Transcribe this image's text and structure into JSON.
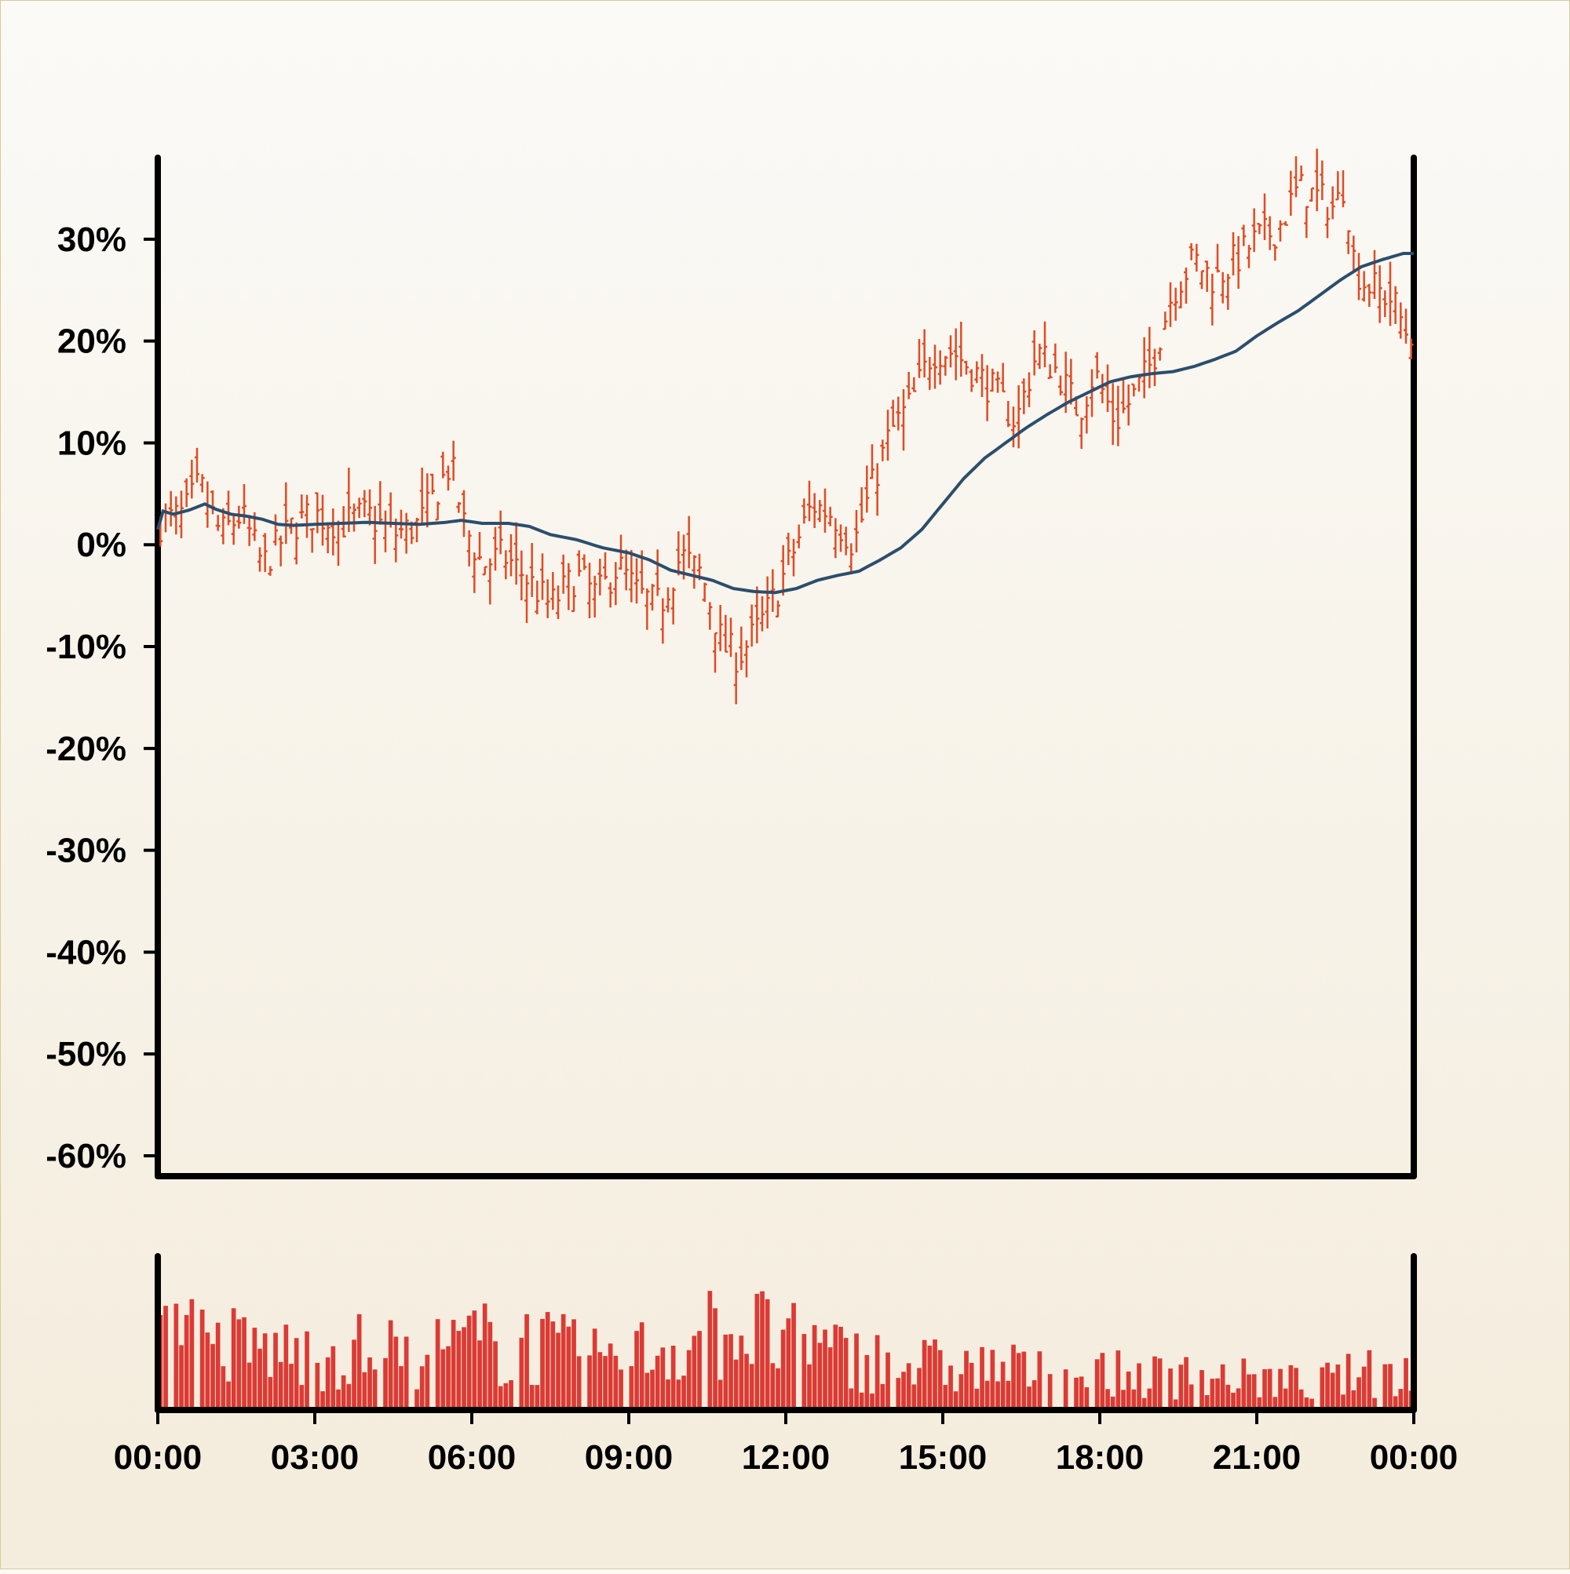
{
  "chart_data": [
    {
      "type": "ohlc",
      "title": "",
      "xlabel": "",
      "ylabel": "",
      "ylim": [
        -62,
        38
      ],
      "y_ticks": [
        30,
        20,
        10,
        0,
        -10,
        -20,
        -30,
        -40,
        -50,
        -60
      ],
      "y_tick_labels": [
        "30%",
        "20%",
        "10%",
        "0%",
        "-10%",
        "-20%",
        "-30%",
        "-40%",
        "-50%",
        "-60%"
      ],
      "x_range_hours": [
        0,
        24
      ],
      "price_color": "#e34a22",
      "ma_color": "#2c4e6c",
      "price_path": [
        [
          0.0,
          2
        ],
        [
          0.5,
          3
        ],
        [
          0.8,
          6
        ],
        [
          1.2,
          1
        ],
        [
          1.6,
          3
        ],
        [
          2.0,
          -2
        ],
        [
          2.3,
          0
        ],
        [
          2.6,
          2
        ],
        [
          3.0,
          3
        ],
        [
          3.5,
          2
        ],
        [
          4.0,
          3
        ],
        [
          4.5,
          1
        ],
        [
          5.0,
          2
        ],
        [
          5.3,
          5
        ],
        [
          5.6,
          8
        ],
        [
          5.85,
          2
        ],
        [
          6.2,
          -2
        ],
        [
          6.6,
          -1
        ],
        [
          7.0,
          -3
        ],
        [
          7.5,
          -6
        ],
        [
          8.0,
          -3
        ],
        [
          8.4,
          -5
        ],
        [
          8.8,
          -2
        ],
        [
          9.2,
          -5
        ],
        [
          9.6,
          -6
        ],
        [
          10.0,
          -1
        ],
        [
          10.4,
          -3
        ],
        [
          10.8,
          -10
        ],
        [
          11.1,
          -11
        ],
        [
          11.5,
          -8
        ],
        [
          11.8,
          -5
        ],
        [
          12.2,
          0
        ],
        [
          12.5,
          4
        ],
        [
          12.9,
          3
        ],
        [
          13.3,
          0
        ],
        [
          13.6,
          5
        ],
        [
          14.0,
          11
        ],
        [
          14.4,
          14
        ],
        [
          14.8,
          19
        ],
        [
          15.2,
          19
        ],
        [
          15.6,
          17
        ],
        [
          16.0,
          15
        ],
        [
          16.4,
          12
        ],
        [
          16.8,
          19
        ],
        [
          17.2,
          17
        ],
        [
          17.6,
          13
        ],
        [
          17.9,
          17
        ],
        [
          18.3,
          12
        ],
        [
          18.7,
          15
        ],
        [
          19.0,
          18
        ],
        [
          19.4,
          25
        ],
        [
          19.8,
          28
        ],
        [
          20.2,
          26
        ],
        [
          20.6,
          28
        ],
        [
          21.0,
          30
        ],
        [
          21.4,
          31
        ],
        [
          21.8,
          35
        ],
        [
          22.2,
          34
        ],
        [
          22.5,
          33
        ],
        [
          22.7,
          36
        ],
        [
          22.8,
          29
        ],
        [
          23.0,
          26
        ],
        [
          23.3,
          25
        ],
        [
          23.6,
          24
        ],
        [
          23.85,
          21
        ]
      ],
      "moving_average": [
        [
          0.0,
          1.5
        ],
        [
          0.1,
          3.3
        ],
        [
          0.3,
          3.0
        ],
        [
          0.6,
          3.4
        ],
        [
          0.9,
          4.0
        ],
        [
          1.1,
          3.5
        ],
        [
          1.4,
          3.0
        ],
        [
          1.7,
          2.8
        ],
        [
          2.0,
          2.5
        ],
        [
          2.3,
          2.0
        ],
        [
          2.6,
          1.9
        ],
        [
          3.0,
          2.0
        ],
        [
          3.5,
          2.1
        ],
        [
          4.0,
          2.2
        ],
        [
          4.5,
          2.1
        ],
        [
          5.0,
          2.0
        ],
        [
          5.5,
          2.2
        ],
        [
          5.8,
          2.4
        ],
        [
          6.2,
          2.1
        ],
        [
          6.7,
          2.1
        ],
        [
          7.1,
          1.8
        ],
        [
          7.5,
          1.0
        ],
        [
          8.0,
          0.5
        ],
        [
          8.5,
          -0.3
        ],
        [
          9.0,
          -0.8
        ],
        [
          9.4,
          -1.5
        ],
        [
          9.8,
          -2.5
        ],
        [
          10.2,
          -3.0
        ],
        [
          10.6,
          -3.5
        ],
        [
          11.0,
          -4.3
        ],
        [
          11.4,
          -4.6
        ],
        [
          11.8,
          -4.7
        ],
        [
          12.2,
          -4.3
        ],
        [
          12.6,
          -3.5
        ],
        [
          13.0,
          -3.0
        ],
        [
          13.4,
          -2.6
        ],
        [
          13.8,
          -1.5
        ],
        [
          14.2,
          -0.3
        ],
        [
          14.6,
          1.5
        ],
        [
          15.0,
          4.0
        ],
        [
          15.4,
          6.5
        ],
        [
          15.8,
          8.5
        ],
        [
          16.2,
          10.0
        ],
        [
          16.6,
          11.5
        ],
        [
          17.0,
          12.8
        ],
        [
          17.4,
          14.0
        ],
        [
          17.8,
          15.0
        ],
        [
          18.2,
          16.0
        ],
        [
          18.6,
          16.5
        ],
        [
          19.0,
          16.8
        ],
        [
          19.4,
          17.0
        ],
        [
          19.8,
          17.5
        ],
        [
          20.2,
          18.2
        ],
        [
          20.6,
          19.0
        ],
        [
          21.0,
          20.5
        ],
        [
          21.4,
          21.8
        ],
        [
          21.8,
          23.0
        ],
        [
          22.2,
          24.5
        ],
        [
          22.6,
          26.0
        ],
        [
          23.0,
          27.3
        ],
        [
          23.4,
          28.0
        ],
        [
          23.8,
          28.6
        ],
        [
          24.0,
          28.6
        ]
      ]
    },
    {
      "type": "bar",
      "title": "",
      "series": "volume",
      "color": "#dc3a34",
      "x_ticks": [
        0,
        3,
        6,
        9,
        12,
        15,
        18,
        21,
        24
      ],
      "x_tick_labels": [
        "00:00",
        "03:00",
        "06:00",
        "09:00",
        "12:00",
        "15:00",
        "18:00",
        "21:00",
        "00:00"
      ],
      "relative_volume_profile": [
        [
          0,
          0.6
        ],
        [
          1,
          0.55
        ],
        [
          2,
          0.5
        ],
        [
          3,
          0.45
        ],
        [
          4,
          0.5
        ],
        [
          5,
          0.45
        ],
        [
          6,
          0.55
        ],
        [
          7,
          0.55
        ],
        [
          8,
          0.45
        ],
        [
          9,
          0.45
        ],
        [
          10,
          0.55
        ],
        [
          11,
          0.7
        ],
        [
          12,
          0.55
        ],
        [
          13,
          0.45
        ],
        [
          14,
          0.4
        ],
        [
          15,
          0.35
        ],
        [
          16,
          0.35
        ],
        [
          17,
          0.3
        ],
        [
          18,
          0.3
        ],
        [
          19,
          0.28
        ],
        [
          20,
          0.28
        ],
        [
          21,
          0.25
        ],
        [
          22,
          0.22
        ],
        [
          23,
          0.3
        ],
        [
          24,
          0.3
        ]
      ]
    }
  ]
}
